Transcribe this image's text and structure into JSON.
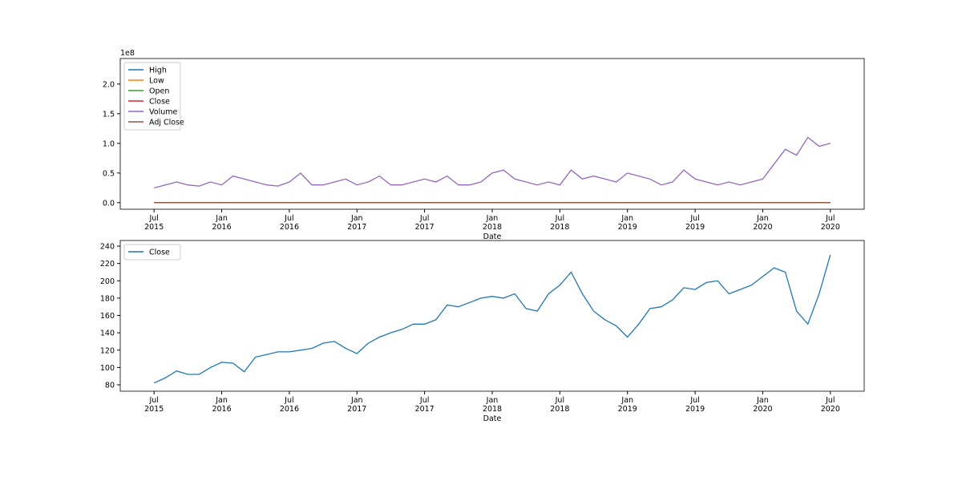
{
  "chart_data": [
    {
      "type": "line",
      "xlabel": "Date",
      "offset_label": "1e8",
      "legend": "upper left",
      "x": [
        "2015-07",
        "2015-08",
        "2015-09",
        "2015-10",
        "2015-11",
        "2015-12",
        "2016-01",
        "2016-02",
        "2016-03",
        "2016-04",
        "2016-05",
        "2016-06",
        "2016-07",
        "2016-08",
        "2016-09",
        "2016-10",
        "2016-11",
        "2016-12",
        "2017-01",
        "2017-02",
        "2017-03",
        "2017-04",
        "2017-05",
        "2017-06",
        "2017-07",
        "2017-08",
        "2017-09",
        "2017-10",
        "2017-11",
        "2017-12",
        "2018-01",
        "2018-02",
        "2018-03",
        "2018-04",
        "2018-05",
        "2018-06",
        "2018-07",
        "2018-08",
        "2018-09",
        "2018-10",
        "2018-11",
        "2018-12",
        "2019-01",
        "2019-02",
        "2019-03",
        "2019-04",
        "2019-05",
        "2019-06",
        "2019-07",
        "2019-08",
        "2019-09",
        "2019-10",
        "2019-11",
        "2019-12",
        "2020-01",
        "2020-02",
        "2020-03",
        "2020-04",
        "2020-05",
        "2020-06",
        "2020-07"
      ],
      "series": [
        {
          "name": "High",
          "color": "#1f77b4",
          "values": [
            0,
            0,
            0,
            0,
            0,
            0,
            0,
            0,
            0,
            0,
            0,
            0,
            0,
            0,
            0,
            0,
            0,
            0,
            0,
            0,
            0,
            0,
            0,
            0,
            0,
            0,
            0,
            0,
            0,
            0,
            0,
            0,
            0,
            0,
            0,
            0,
            0,
            0,
            0,
            0,
            0,
            0,
            0,
            0,
            0,
            0,
            0,
            0,
            0,
            0,
            0,
            0,
            0,
            0,
            0,
            0,
            0,
            0,
            0,
            0,
            0
          ]
        },
        {
          "name": "Low",
          "color": "#ff7f0e",
          "values": [
            0,
            0,
            0,
            0,
            0,
            0,
            0,
            0,
            0,
            0,
            0,
            0,
            0,
            0,
            0,
            0,
            0,
            0,
            0,
            0,
            0,
            0,
            0,
            0,
            0,
            0,
            0,
            0,
            0,
            0,
            0,
            0,
            0,
            0,
            0,
            0,
            0,
            0,
            0,
            0,
            0,
            0,
            0,
            0,
            0,
            0,
            0,
            0,
            0,
            0,
            0,
            0,
            0,
            0,
            0,
            0,
            0,
            0,
            0,
            0,
            0
          ]
        },
        {
          "name": "Open",
          "color": "#2ca02c",
          "values": [
            0,
            0,
            0,
            0,
            0,
            0,
            0,
            0,
            0,
            0,
            0,
            0,
            0,
            0,
            0,
            0,
            0,
            0,
            0,
            0,
            0,
            0,
            0,
            0,
            0,
            0,
            0,
            0,
            0,
            0,
            0,
            0,
            0,
            0,
            0,
            0,
            0,
            0,
            0,
            0,
            0,
            0,
            0,
            0,
            0,
            0,
            0,
            0,
            0,
            0,
            0,
            0,
            0,
            0,
            0,
            0,
            0,
            0,
            0,
            0,
            0
          ]
        },
        {
          "name": "Close",
          "color": "#d62728",
          "values": [
            0,
            0,
            0,
            0,
            0,
            0,
            0,
            0,
            0,
            0,
            0,
            0,
            0,
            0,
            0,
            0,
            0,
            0,
            0,
            0,
            0,
            0,
            0,
            0,
            0,
            0,
            0,
            0,
            0,
            0,
            0,
            0,
            0,
            0,
            0,
            0,
            0,
            0,
            0,
            0,
            0,
            0,
            0,
            0,
            0,
            0,
            0,
            0,
            0,
            0,
            0,
            0,
            0,
            0,
            0,
            0,
            0,
            0,
            0,
            0,
            0
          ]
        },
        {
          "name": "Volume",
          "color": "#9467bd",
          "values": [
            0.25,
            0.3,
            0.35,
            0.3,
            0.28,
            0.35,
            0.3,
            0.45,
            0.4,
            0.35,
            0.3,
            0.28,
            0.35,
            0.5,
            0.3,
            0.3,
            0.35,
            0.4,
            0.3,
            0.35,
            0.45,
            0.3,
            0.3,
            0.35,
            0.4,
            0.35,
            0.45,
            0.3,
            0.3,
            0.35,
            0.5,
            0.55,
            0.4,
            0.35,
            0.3,
            0.35,
            0.3,
            0.55,
            0.4,
            0.45,
            0.4,
            0.35,
            0.5,
            0.45,
            0.4,
            0.3,
            0.35,
            0.55,
            0.4,
            0.35,
            0.3,
            0.35,
            0.3,
            0.35,
            0.4,
            0.65,
            0.9,
            0.8,
            1.1,
            0.95,
            1.0
          ]
        },
        {
          "name": "Adj Close",
          "color": "#8c564b",
          "values": [
            0,
            0,
            0,
            0,
            0,
            0,
            0,
            0,
            0,
            0,
            0,
            0,
            0,
            0,
            0,
            0,
            0,
            0,
            0,
            0,
            0,
            0,
            0,
            0,
            0,
            0,
            0,
            0,
            0,
            0,
            0,
            0,
            0,
            0,
            0,
            0,
            0,
            0,
            0,
            0,
            0,
            0,
            0,
            0,
            0,
            0,
            0,
            0,
            0,
            0,
            0,
            0,
            0,
            0,
            0,
            0,
            0,
            0,
            0,
            0,
            0
          ]
        }
      ],
      "xlim": [
        "2015-04",
        "2020-10"
      ],
      "xticks": [
        {
          "value": "2015-07",
          "label": "Jul\n2015"
        },
        {
          "value": "2016-01",
          "label": "Jan\n2016"
        },
        {
          "value": "2016-07",
          "label": "Jul\n2016"
        },
        {
          "value": "2017-01",
          "label": "Jan\n2017"
        },
        {
          "value": "2017-07",
          "label": "Jul\n2017"
        },
        {
          "value": "2018-01",
          "label": "Jan\n2018"
        },
        {
          "value": "2018-07",
          "label": "Jul\n2018"
        },
        {
          "value": "2019-01",
          "label": "Jan\n2019"
        },
        {
          "value": "2019-07",
          "label": "Jul\n2019"
        },
        {
          "value": "2020-01",
          "label": "Jan\n2020"
        },
        {
          "value": "2020-07",
          "label": "Jul\n2020"
        }
      ],
      "ylim": [
        -0.11,
        2.43
      ],
      "yticks": [
        {
          "value": 0,
          "label": "0.0"
        },
        {
          "value": 0.5,
          "label": "0.5"
        },
        {
          "value": 1,
          "label": "1.0"
        },
        {
          "value": 1.5,
          "label": "1.5"
        },
        {
          "value": 2,
          "label": "2.0"
        }
      ]
    },
    {
      "type": "line",
      "xlabel": "Date",
      "legend": "upper left",
      "x": [
        "2015-07",
        "2015-08",
        "2015-09",
        "2015-10",
        "2015-11",
        "2015-12",
        "2016-01",
        "2016-02",
        "2016-03",
        "2016-04",
        "2016-05",
        "2016-06",
        "2016-07",
        "2016-08",
        "2016-09",
        "2016-10",
        "2016-11",
        "2016-12",
        "2017-01",
        "2017-02",
        "2017-03",
        "2017-04",
        "2017-05",
        "2017-06",
        "2017-07",
        "2017-08",
        "2017-09",
        "2017-10",
        "2017-11",
        "2017-12",
        "2018-01",
        "2018-02",
        "2018-03",
        "2018-04",
        "2018-05",
        "2018-06",
        "2018-07",
        "2018-08",
        "2018-09",
        "2018-10",
        "2018-11",
        "2018-12",
        "2019-01",
        "2019-02",
        "2019-03",
        "2019-04",
        "2019-05",
        "2019-06",
        "2019-07",
        "2019-08",
        "2019-09",
        "2019-10",
        "2019-11",
        "2019-12",
        "2020-01",
        "2020-02",
        "2020-03",
        "2020-04",
        "2020-05",
        "2020-06",
        "2020-07"
      ],
      "series": [
        {
          "name": "Close",
          "color": "#1f77b4",
          "values": [
            82,
            88,
            96,
            92,
            92,
            100,
            106,
            105,
            95,
            112,
            115,
            118,
            118,
            120,
            122,
            128,
            130,
            122,
            116,
            128,
            135,
            140,
            144,
            150,
            150,
            155,
            172,
            170,
            175,
            180,
            182,
            180,
            185,
            168,
            165,
            185,
            195,
            210,
            185,
            165,
            155,
            148,
            135,
            150,
            168,
            170,
            178,
            192,
            190,
            198,
            200,
            185,
            190,
            195,
            205,
            215,
            210,
            165,
            150,
            185,
            230
          ]
        }
      ],
      "xlim": [
        "2015-04",
        "2020-10"
      ],
      "xticks": [
        {
          "value": "2015-07",
          "label": "Jul\n2015"
        },
        {
          "value": "2016-01",
          "label": "Jan\n2016"
        },
        {
          "value": "2016-07",
          "label": "Jul\n2016"
        },
        {
          "value": "2017-01",
          "label": "Jan\n2017"
        },
        {
          "value": "2017-07",
          "label": "Jul\n2017"
        },
        {
          "value": "2018-01",
          "label": "Jan\n2018"
        },
        {
          "value": "2018-07",
          "label": "Jul\n2018"
        },
        {
          "value": "2019-01",
          "label": "Jan\n2019"
        },
        {
          "value": "2019-07",
          "label": "Jul\n2019"
        },
        {
          "value": "2020-01",
          "label": "Jan\n2020"
        },
        {
          "value": "2020-07",
          "label": "Jul\n2020"
        }
      ],
      "ylim": [
        72.6,
        246.5
      ],
      "yticks": [
        80,
        100,
        120,
        140,
        160,
        180,
        200,
        220,
        240
      ]
    }
  ]
}
